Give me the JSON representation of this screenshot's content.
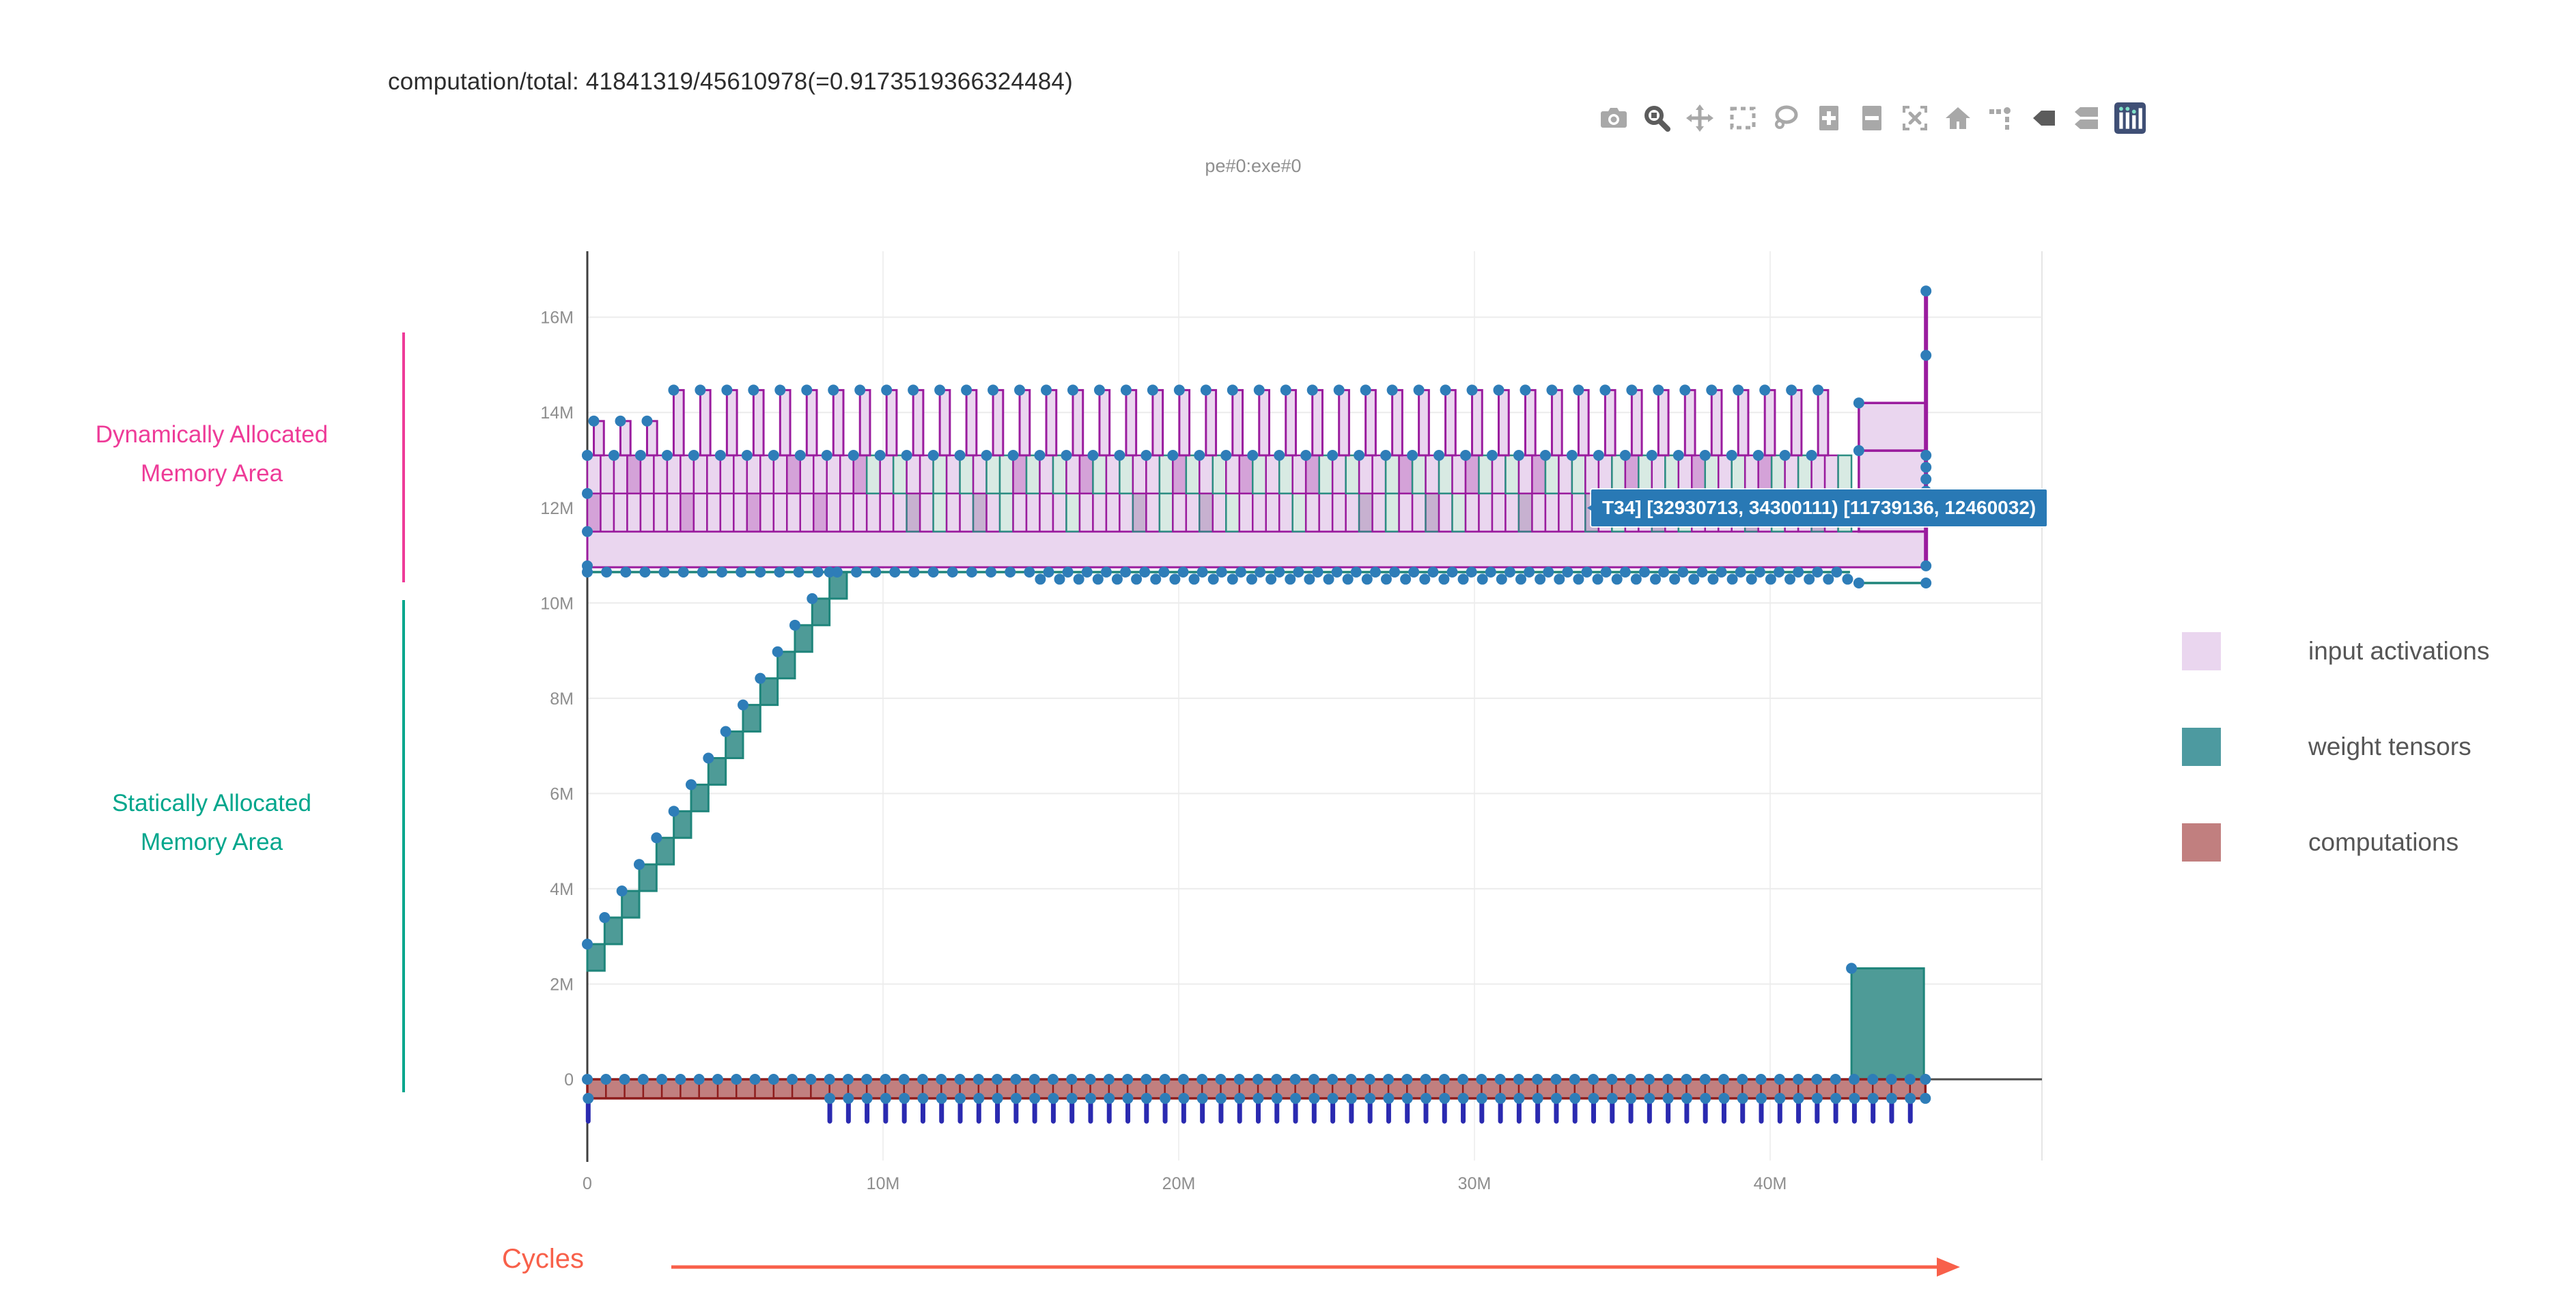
{
  "header": {
    "title": "computation/total: 41841319/45610978(=0.9173519366324484)",
    "subtitle": "pe#0:exe#0"
  },
  "modebar": {
    "icons": [
      {
        "name": "camera",
        "title": "Download plot as png",
        "active": false
      },
      {
        "name": "zoom",
        "title": "Zoom",
        "active": true
      },
      {
        "name": "pan",
        "title": "Pan",
        "active": false
      },
      {
        "name": "box-select",
        "title": "Box Select",
        "active": false
      },
      {
        "name": "lasso-select",
        "title": "Lasso Select",
        "active": false
      },
      {
        "name": "zoom-in",
        "title": "Zoom in",
        "active": false
      },
      {
        "name": "zoom-out",
        "title": "Zoom out",
        "active": false
      },
      {
        "name": "autoscale",
        "title": "Autoscale",
        "active": false
      },
      {
        "name": "home",
        "title": "Reset axes",
        "active": false
      },
      {
        "name": "spikelines",
        "title": "Toggle Spike Lines",
        "active": false
      },
      {
        "name": "hover-closest",
        "title": "Show closest data on hover",
        "active": true
      },
      {
        "name": "hover-compare",
        "title": "Compare data on hover",
        "active": false
      },
      {
        "name": "plotly-logo",
        "title": "Produced with Plotly",
        "active": false
      }
    ]
  },
  "annotations": {
    "dynamic_area": {
      "line1": "Dynamically Allocated",
      "line2": "Memory Area",
      "color": "#ee3b98"
    },
    "static_area": {
      "line1": "Statically Allocated",
      "line2": "Memory Area",
      "color": "#00a68c"
    },
    "cycles": {
      "label": "Cycles",
      "color": "#f8604a"
    }
  },
  "legend": {
    "items": [
      {
        "label": "input activations",
        "color": "#ead6ef"
      },
      {
        "label": "weight tensors",
        "color": "#4d9aa0"
      },
      {
        "label": "computations",
        "color": "#c17f7f"
      }
    ]
  },
  "tooltip": {
    "text": "T34] [32930713, 34300111) [11739136, 12460032)",
    "bg": "#2979b5"
  },
  "chart_data": {
    "type": "area",
    "description": "Plotly memory-allocation timeline: dynamically allocated input-activation buffers (top band), statically allocated weight tensors (staircase) and computations (band at y=0). Units below are millions (cycles on x, bytes on y).",
    "x_axis": {
      "label": "Cycles",
      "ticks": [
        {
          "v": 0,
          "t": "0"
        },
        {
          "v": 10,
          "t": "10M"
        },
        {
          "v": 20,
          "t": "20M"
        },
        {
          "v": 30,
          "t": "30M"
        },
        {
          "v": 40,
          "t": "40M"
        }
      ],
      "range": [
        0,
        49.2
      ],
      "data_end": 45.3
    },
    "y_axis": {
      "ticks": [
        {
          "v": 0,
          "t": "0"
        },
        {
          "v": 2,
          "t": "2M"
        },
        {
          "v": 4,
          "t": "4M"
        },
        {
          "v": 6,
          "t": "6M"
        },
        {
          "v": 8,
          "t": "8M"
        },
        {
          "v": 10,
          "t": "10M"
        },
        {
          "v": 12,
          "t": "12M"
        },
        {
          "v": 14,
          "t": "14M"
        },
        {
          "v": 16,
          "t": "16M"
        }
      ],
      "range": [
        -1.7,
        17.4
      ]
    },
    "marker": {
      "color": "#2e7db8",
      "r": 8
    },
    "grid": {
      "h_color": "#ececec",
      "v_color": "#f0f0f0",
      "zero_color": "#4d4d4d",
      "axis_color": "#3f3f3f"
    },
    "series": [
      {
        "name": "input activations",
        "fill": "#ead6ef",
        "stroke": "#9a1c9e",
        "mint_fill": "#d8eae3",
        "mint_stroke": "#2c8d83",
        "overlap_fill": "rgba(154,28,158,0.28)",
        "base_band": {
          "x": [
            0,
            45.27
          ],
          "y": [
            10.75,
            11.5
          ]
        },
        "rows": [
          {
            "y0": 11.5,
            "y1": 12.3
          },
          {
            "y0": 12.3,
            "y1": 13.1
          }
        ],
        "box_w": 0.45,
        "pattern_end_x": 42.55,
        "mint_start_x": 9.2,
        "spikes": {
          "period": 0.9,
          "offset": 0.22,
          "width": 0.34,
          "base_y": 13.1,
          "top_y": 14.47,
          "early_top_y": 13.82,
          "early_count": 3
        },
        "left_edge_marker_ys": [
          10.78,
          11.5,
          12.3,
          13.1
        ],
        "wide_boxes": [
          {
            "x": [
              43.0,
              45.27
            ],
            "y": [
              11.5,
              13.2
            ]
          },
          {
            "x": [
              43.0,
              45.27
            ],
            "y": [
              13.2,
              14.2
            ]
          }
        ],
        "end_spike": {
          "x": 45.27,
          "y": [
            10.75,
            16.55
          ],
          "marker_ys": [
            16.55,
            15.2,
            13.1,
            12.85,
            12.6,
            12.35,
            10.78
          ]
        }
      },
      {
        "name": "weight tensors",
        "fill": "#4e9b97",
        "stroke": "#1f857b",
        "staircase": {
          "x0": 0,
          "step_w": 0.585,
          "step_h": 0.558,
          "count": 15,
          "y0": 2.28
        },
        "static_line": {
          "y": 10.65,
          "x": [
            0,
            42.7
          ],
          "marker_dx": 0.65
        },
        "shadow_markers": {
          "y": 10.5,
          "x_start": 15,
          "x_end": 42.6,
          "dx": 0.65,
          "x_offset": 0.32
        },
        "tail_line": {
          "y": 10.42,
          "x": [
            43.0,
            45.27
          ]
        },
        "final_box": {
          "x": [
            42.75,
            45.2
          ],
          "y": [
            0,
            2.33
          ]
        }
      },
      {
        "name": "computations",
        "fill": "#c17f7f",
        "stroke": "#8e1c1c",
        "tick_color": "#2a2ab0",
        "band": {
          "x": [
            0,
            45.25
          ],
          "y": [
            -0.4,
            0
          ]
        },
        "segment_dx": 0.63,
        "ticks": {
          "start_x": 8.2,
          "dx": 0.63,
          "y0": -0.4,
          "y1": -0.88,
          "extra_x": [
            0.03
          ]
        }
      }
    ]
  }
}
